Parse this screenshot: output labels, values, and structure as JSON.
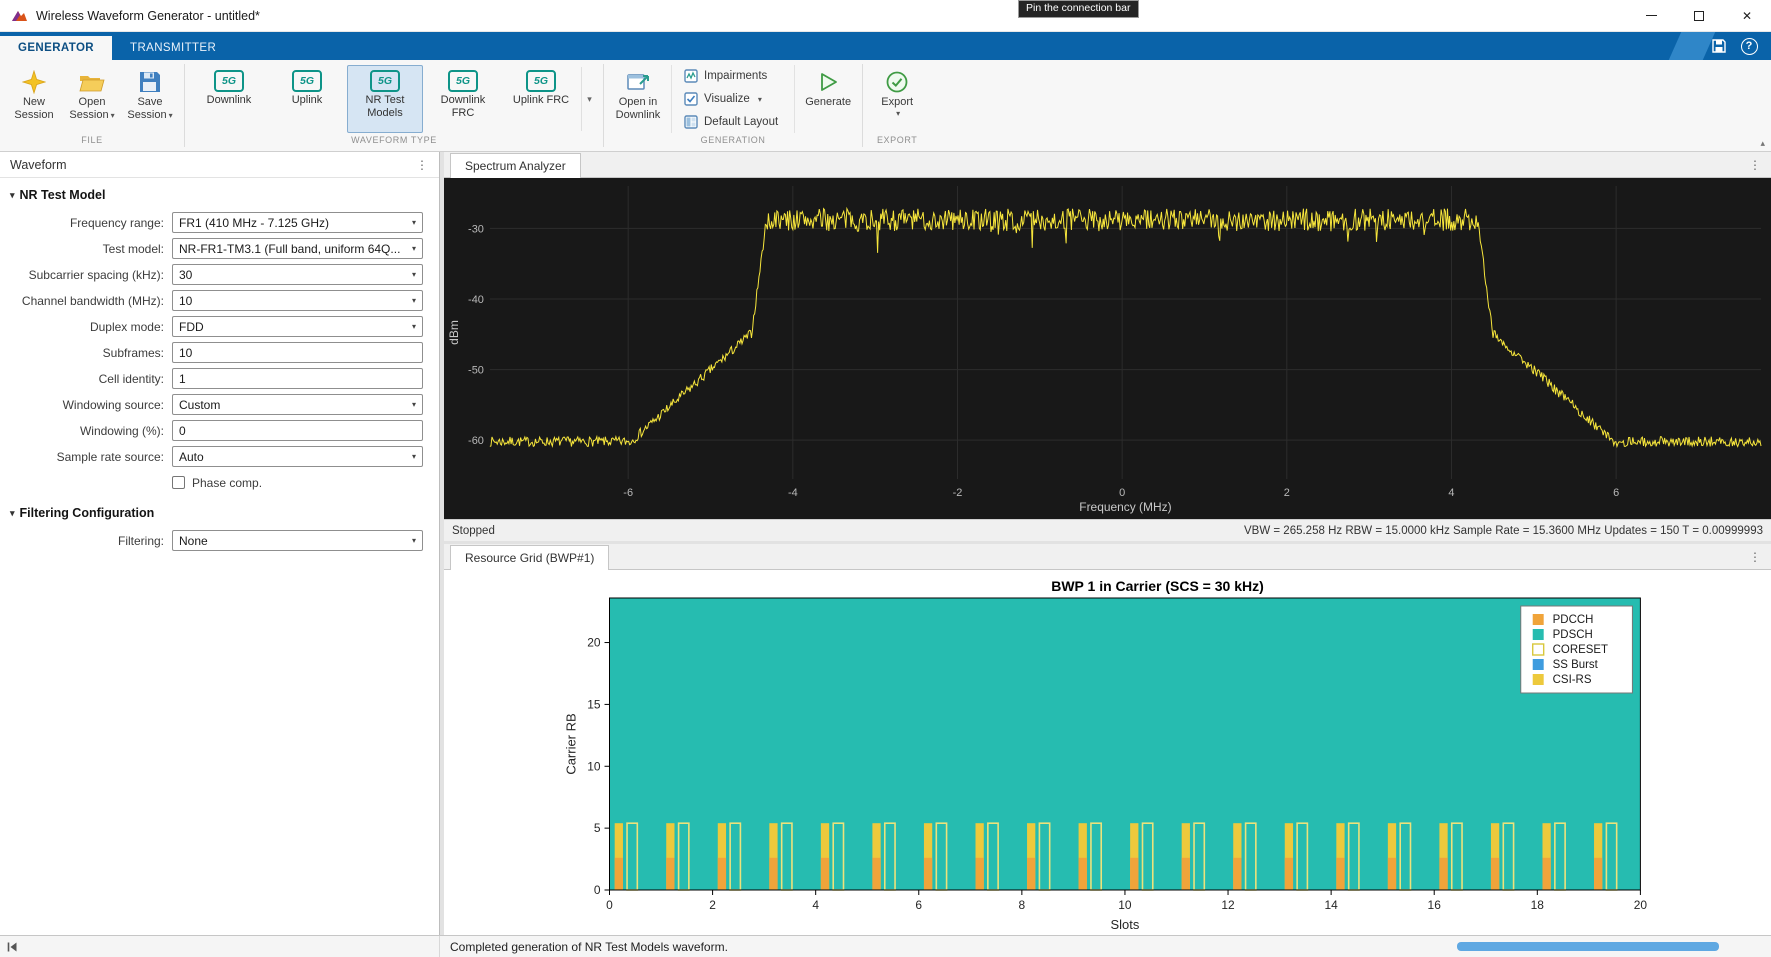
{
  "window": {
    "title": "Wireless Waveform Generator - untitled*"
  },
  "tooltip": {
    "text": "Pin the connection bar"
  },
  "ribbon": {
    "tabs": [
      {
        "label": "GENERATOR"
      },
      {
        "label": "TRANSMITTER"
      }
    ],
    "quick_access": {
      "help_label": "?"
    },
    "file": {
      "label": "FILE",
      "buttons": [
        {
          "label": "New\nSession",
          "name": "new-session",
          "dropdown": false
        },
        {
          "label": "Open\nSession",
          "name": "open-session",
          "dropdown": true
        },
        {
          "label": "Save\nSession",
          "name": "save-session",
          "dropdown": true
        }
      ]
    },
    "waveform_type": {
      "label": "WAVEFORM TYPE",
      "icon_text": "5G",
      "buttons": [
        {
          "label": "Downlink",
          "selected": false
        },
        {
          "label": "Uplink",
          "selected": false
        },
        {
          "label": "NR Test Models",
          "selected": true
        },
        {
          "label": "Downlink FRC",
          "selected": false
        },
        {
          "label": "Uplink FRC",
          "selected": false
        }
      ]
    },
    "generation": {
      "label": "GENERATION",
      "open_in": {
        "label": "Open in\nDownlink"
      },
      "tools": [
        {
          "label": "Impairments",
          "dropdown": false
        },
        {
          "label": "Visualize",
          "dropdown": true
        },
        {
          "label": "Default Layout",
          "dropdown": false
        }
      ],
      "generate": {
        "label": "Generate"
      }
    },
    "export": {
      "label": "EXPORT",
      "button": {
        "label": "Export"
      }
    }
  },
  "left_panel": {
    "title": "Waveform",
    "sections": [
      {
        "header": "NR Test Model",
        "fields": [
          {
            "label": "Frequency range:",
            "value": "FR1 (410 MHz - 7.125 GHz)",
            "type": "select",
            "name": "frequency-range"
          },
          {
            "label": "Test model:",
            "value": "NR-FR1-TM3.1  (Full band, uniform 64Q...",
            "type": "select",
            "name": "test-model"
          },
          {
            "label": "Subcarrier spacing (kHz):",
            "value": "30",
            "type": "select",
            "name": "subcarrier-spacing"
          },
          {
            "label": "Channel bandwidth (MHz):",
            "value": "10",
            "type": "select",
            "name": "channel-bandwidth"
          },
          {
            "label": "Duplex mode:",
            "value": "FDD",
            "type": "select",
            "name": "duplex-mode"
          },
          {
            "label": "Subframes:",
            "value": "10",
            "type": "input",
            "name": "subframes"
          },
          {
            "label": "Cell identity:",
            "value": "1",
            "type": "input",
            "name": "cell-identity"
          },
          {
            "label": "Windowing source:",
            "value": "Custom",
            "type": "select",
            "name": "windowing-source"
          },
          {
            "label": "Windowing (%):",
            "value": "0",
            "type": "input",
            "name": "windowing-percent"
          },
          {
            "label": "Sample rate source:",
            "value": "Auto",
            "type": "select",
            "name": "sample-rate-source"
          },
          {
            "label": "Phase comp.",
            "type": "checkbox",
            "checked": false,
            "name": "phase-comp"
          }
        ]
      },
      {
        "header": "Filtering Configuration",
        "fields": [
          {
            "label": "Filtering:",
            "value": "None",
            "type": "select",
            "name": "filtering"
          }
        ]
      }
    ]
  },
  "spectrum_pane": {
    "tab": "Spectrum Analyzer",
    "status_left": "Stopped",
    "status_right": "VBW = 265.258 Hz  RBW = 15.0000 kHz  Sample Rate = 15.3600 MHz  Updates = 150  T = 0.00999993"
  },
  "grid_pane": {
    "tab": "Resource Grid (BWP#1)"
  },
  "status_bar": {
    "message": "Completed generation of NR Test Models waveform."
  },
  "chart_data": [
    {
      "id": "spectrum",
      "type": "line",
      "title": "",
      "xlabel": "Frequency (MHz)",
      "ylabel": "dBm",
      "xlim": [
        -7.68,
        7.76
      ],
      "ylim": [
        -65.5,
        -24
      ],
      "xticks": [
        -6,
        -4,
        -2,
        0,
        2,
        4,
        6
      ],
      "yticks": [
        -60,
        -50,
        -40,
        -30
      ],
      "background": "#181818",
      "grid": true,
      "series": [
        {
          "name": "spectrum-trace",
          "color": "#f7e63c",
          "model": {
            "passband_level_dbm": -28.8,
            "passband_noise_db": 1.6,
            "noise_floor_dbm": -60.2,
            "floor_noise_db": 0.7,
            "band_edge_mhz": 4.32,
            "edge_drop_db": 16,
            "edge_width_mhz": 0.18,
            "skirt_slope_db_per_mhz": 10.5,
            "seed": 7,
            "points": 1200
          }
        }
      ]
    },
    {
      "id": "resource_grid",
      "type": "heatmap",
      "title": "BWP 1 in Carrier (SCS = 30 kHz)",
      "xlabel": "Slots",
      "ylabel": "Carrier RB",
      "xlim": [
        0,
        20
      ],
      "ylim": [
        0,
        23.6
      ],
      "xticks": [
        0,
        2,
        4,
        6,
        8,
        10,
        12,
        14,
        16,
        18,
        20
      ],
      "yticks": [
        0,
        5,
        10,
        15,
        20
      ],
      "background_channel": "PDSCH",
      "slots": 20,
      "colors": {
        "PDCCH": "#F0A43A",
        "PDSCH": "#26BCB0",
        "CORESET": "#EDE27A",
        "SS Burst": "#3E9CDF",
        "CSI-RS": "#EDC93C"
      },
      "per_slot_bars": [
        {
          "channel": "CSI-RS",
          "x_offset": 0.1,
          "width": 0.16,
          "rb_from": 0,
          "rb_to": 5.4,
          "style": "filled"
        },
        {
          "channel": "PDCCH",
          "x_offset": 0.1,
          "width": 0.16,
          "rb_from": 0,
          "rb_to": 2.6,
          "style": "filled"
        },
        {
          "channel": "CORESET",
          "x_offset": 0.34,
          "width": 0.2,
          "rb_from": 0,
          "rb_to": 5.4,
          "style": "outline"
        }
      ],
      "legend_entries": [
        {
          "label": "PDCCH",
          "fill": "#F0A43A"
        },
        {
          "label": "PDSCH",
          "fill": "#26BCB0"
        },
        {
          "label": "CORESET",
          "fill": "#ffffff",
          "stroke": "#D8C83C"
        },
        {
          "label": "SS Burst",
          "fill": "#3E9CDF"
        },
        {
          "label": "CSI-RS",
          "fill": "#EDC93C"
        }
      ]
    }
  ]
}
